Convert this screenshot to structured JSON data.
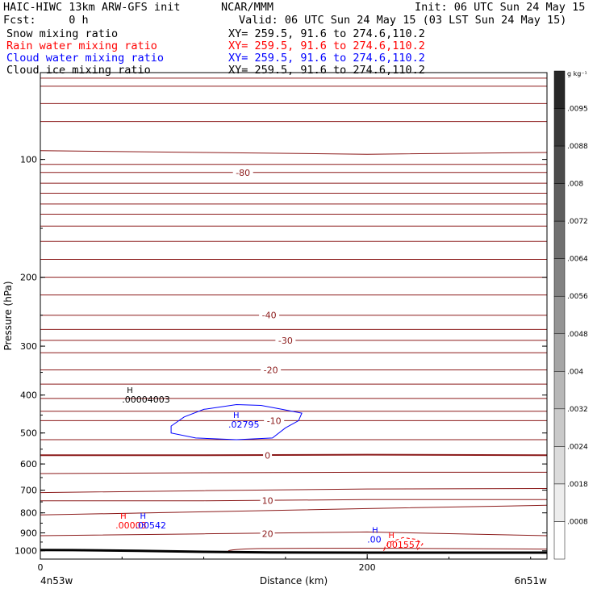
{
  "header": {
    "left_line1": "HAIC-HIWC 13km ARW-GFS init",
    "center_line1": "NCAR/MMM",
    "right_line1": "Init: 06 UTC Sun 24 May 15",
    "left_line2": "Fcst:     0 h",
    "right_line2": "Valid: 06 UTC Sun 24 May 15 (03 LST Sun 24 May 15)",
    "fields": [
      {
        "label": "Snow mixing ratio",
        "xy": "XY= 259.5, 91.6 to 274.6,110.2",
        "color": "#000000"
      },
      {
        "label": "Rain water mixing ratio",
        "xy": "XY= 259.5, 91.6 to 274.6,110.2",
        "color": "#ff0000"
      },
      {
        "label": "Cloud water mixing ratio",
        "xy": "XY= 259.5, 91.6 to 274.6,110.2",
        "color": "#0000ff"
      },
      {
        "label": "Cloud ice mixing ratio",
        "xy": "XY= 259.5, 91.6 to 274.6,110.2",
        "color": "#000000"
      }
    ]
  },
  "colors": {
    "temperature": "#8b1a1a",
    "snow": "#000000",
    "rain": "#ff0000",
    "cloud_water": "#0000ff",
    "terrain": "#000000"
  },
  "chart_data": {
    "type": "contour",
    "title": "",
    "xlabel": "Distance (km)",
    "ylabel": "Pressure (hPa)",
    "xlim": [
      0,
      310
    ],
    "ylim": [
      1050,
      60
    ],
    "y_scale": "log",
    "x_ticks": [
      0,
      200
    ],
    "y_ticks": [
      100,
      200,
      300,
      400,
      500,
      600,
      700,
      800,
      900,
      1000
    ],
    "endpoint_left": "4n53w",
    "endpoint_right": "6n51w",
    "temperature_contour_labels": [
      {
        "label": "-80",
        "x": 124,
        "p": 108
      },
      {
        "label": "-40",
        "x": 140,
        "p": 250
      },
      {
        "label": "-30",
        "x": 150,
        "p": 290
      },
      {
        "label": "-20",
        "x": 141,
        "p": 345
      },
      {
        "label": "-10",
        "x": 143,
        "p": 465
      },
      {
        "label": "0",
        "x": 139,
        "p": 570
      },
      {
        "label": "10",
        "x": 139,
        "p": 745
      },
      {
        "label": "20",
        "x": 139,
        "p": 905
      }
    ],
    "temperature_contour_rows": [
      [
        62,
        62,
        62,
        62
      ],
      [
        65,
        65,
        65,
        65
      ],
      [
        72,
        72,
        72,
        72
      ],
      [
        80,
        80,
        80,
        80
      ],
      [
        95,
        96,
        97,
        96
      ],
      [
        103,
        103,
        103,
        103
      ],
      [
        108,
        108,
        108,
        108
      ],
      [
        115,
        115,
        115,
        115
      ],
      [
        122,
        122,
        122,
        122
      ],
      [
        130,
        130,
        130,
        130
      ],
      [
        138,
        138,
        138,
        138
      ],
      [
        148,
        148,
        148,
        148
      ],
      [
        162,
        162,
        162,
        162
      ],
      [
        180,
        180,
        180,
        180
      ],
      [
        200,
        200,
        200,
        200
      ],
      [
        222,
        222,
        222,
        222
      ],
      [
        250,
        250,
        250,
        250
      ],
      [
        272,
        272,
        272,
        272
      ],
      [
        290,
        290,
        290,
        290
      ],
      [
        312,
        312,
        312,
        312
      ],
      [
        345,
        345,
        345,
        345
      ],
      [
        375,
        375,
        375,
        375
      ],
      [
        408,
        408,
        408,
        408
      ],
      [
        440,
        440,
        440,
        440
      ],
      [
        465,
        465,
        465,
        465
      ],
      [
        520,
        520,
        520,
        520
      ],
      [
        570,
        570,
        568,
        570
      ],
      [
        635,
        632,
        630,
        630
      ],
      [
        710,
        702,
        695,
        693
      ],
      [
        745,
        745,
        740,
        740
      ],
      [
        810,
        795,
        780,
        765
      ],
      [
        915,
        905,
        895,
        915
      ]
    ],
    "row_x_positions": [
      0,
      100,
      200,
      310
    ],
    "snow_label": {
      "text": ".00004003",
      "x": 50,
      "p": 410
    },
    "cloud_water_label": {
      "text": ".02795",
      "x": 115,
      "p": 475
    },
    "rain_label": {
      "text": ".00003",
      "x": 46,
      "p": 860
    },
    "cloud_water_low_label": {
      "text": ".00542",
      "x": 58,
      "p": 860
    },
    "cloud_water_small_label": {
      "text": ".00",
      "x": 200,
      "p": 935
    },
    "rain_low_label": {
      "text": ".001557",
      "x": 210,
      "p": 965
    },
    "color_bar": {
      "unit": "g kg⁻¹",
      "labels": [
        ".0095",
        ".0088",
        ".008",
        ".0072",
        ".0064",
        ".0056",
        ".0048",
        ".004",
        ".0032",
        ".0024",
        ".0018",
        ".0008"
      ]
    }
  }
}
